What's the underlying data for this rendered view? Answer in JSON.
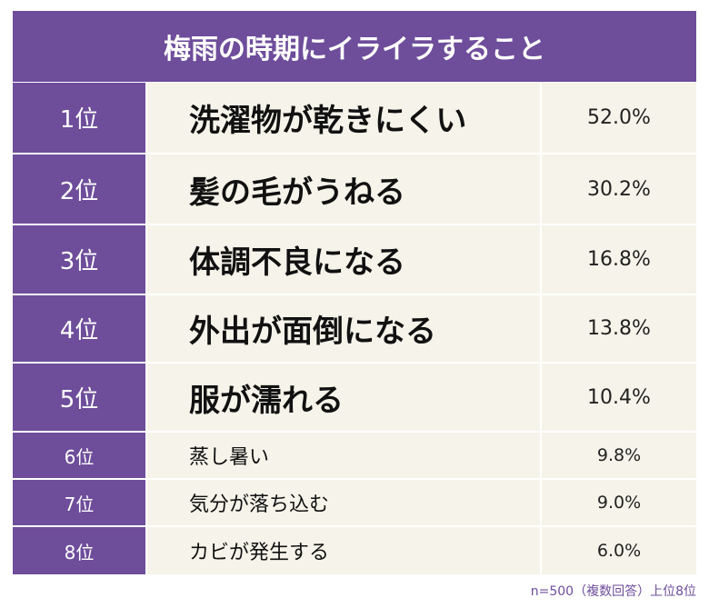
{
  "header": {
    "title": "梅雨の時期にイライラすること"
  },
  "table": {
    "rows": [
      [
        "1位",
        "洗濯物が乾きにくい",
        "52.0%"
      ],
      [
        "2位",
        "髪の毛がうねる",
        "30.2%"
      ],
      [
        "3位",
        "体調不良になる",
        "16.8%"
      ],
      [
        "4位",
        "外出が面倒になる",
        "13.8%"
      ],
      [
        "5位",
        "服が濡れる",
        "10.4%"
      ],
      [
        "6位",
        "蒸し暑い",
        "9.8%"
      ],
      [
        "7位",
        "気分が落ち込む",
        "9.0%"
      ],
      [
        "8位",
        "カビが発生する",
        "6.0%"
      ]
    ]
  },
  "footnote": "n=500（複数回答）上位8位"
}
